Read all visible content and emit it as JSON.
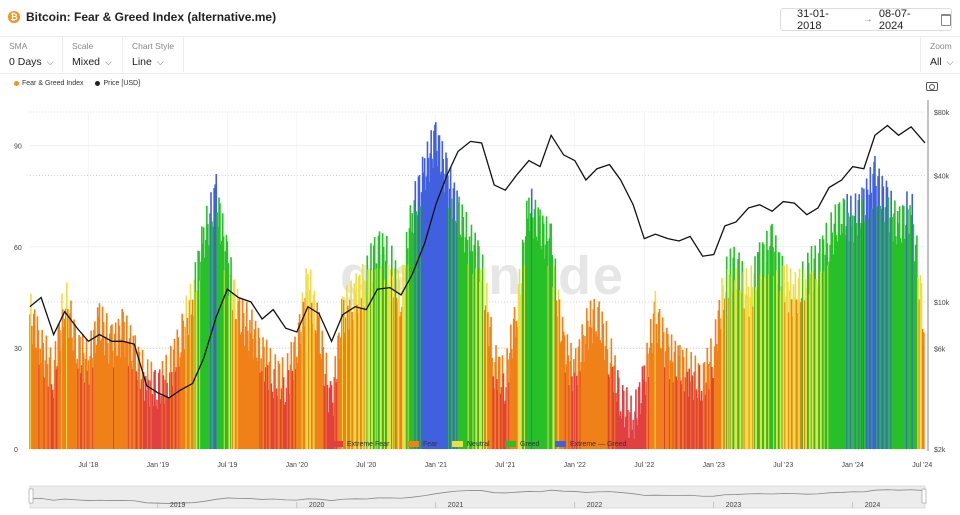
{
  "header": {
    "title": "Bitcoin: Fear & Greed Index (alternative.me)",
    "date_from": "31-01-2018",
    "date_arrow": "→",
    "date_to": "08-07-2024"
  },
  "controls": {
    "sma": {
      "label": "SMA",
      "value": "0 Days"
    },
    "scale": {
      "label": "Scale",
      "value": "Mixed"
    },
    "chart_style": {
      "label": "Chart Style",
      "value": "Line"
    },
    "zoom": {
      "label": "Zoom",
      "value": "All"
    }
  },
  "watermark": "glassnode",
  "colors": {
    "fng_dot": "#f7931a",
    "price_dot": "#222222",
    "extreme_fear": "#e04040",
    "fear": "#f08018",
    "neutral": "#eedd44",
    "greed": "#28c028",
    "extreme_greed": "#4060e0",
    "price_line": "#111111"
  },
  "chart_data": {
    "type": "line",
    "legend_top": [
      "Fear & Greed Index",
      "Price [USD]"
    ],
    "legend_bottom": [
      "Extreme Fear",
      "Fear",
      "Neutral",
      "Greed",
      "Extreme — Greed"
    ],
    "x_ticks": [
      "Jul '18",
      "Jan '19",
      "Jul '19",
      "Jan '20",
      "Jul '20",
      "Jan '21",
      "Jul '21",
      "Jan '22",
      "Jul '22",
      "Jan '23",
      "Jul '23",
      "Jan '24",
      "Jul '24"
    ],
    "y_left": {
      "ticks": [
        0,
        30,
        60,
        90
      ],
      "range": [
        0,
        100
      ]
    },
    "y_right": {
      "ticks": [
        "$2k",
        "$6k",
        "$10k",
        "$40k",
        "$80k"
      ],
      "tick_values": [
        2000,
        6000,
        10000,
        40000,
        80000
      ],
      "scale": "log"
    },
    "x_range": [
      2018.08,
      2024.52
    ],
    "series": [
      {
        "name": "Fear & Greed Index",
        "x": [
          2018.08,
          2018.16,
          2018.25,
          2018.33,
          2018.42,
          2018.5,
          2018.58,
          2018.67,
          2018.75,
          2018.83,
          2018.92,
          2019.0,
          2019.08,
          2019.16,
          2019.25,
          2019.33,
          2019.42,
          2019.5,
          2019.58,
          2019.67,
          2019.75,
          2019.83,
          2019.92,
          2020.0,
          2020.08,
          2020.16,
          2020.25,
          2020.33,
          2020.42,
          2020.5,
          2020.58,
          2020.67,
          2020.75,
          2020.83,
          2020.92,
          2021.0,
          2021.08,
          2021.16,
          2021.25,
          2021.33,
          2021.42,
          2021.5,
          2021.58,
          2021.67,
          2021.75,
          2021.83,
          2021.92,
          2022.0,
          2022.08,
          2022.16,
          2022.25,
          2022.33,
          2022.42,
          2022.5,
          2022.58,
          2022.67,
          2022.75,
          2022.83,
          2022.92,
          2023.0,
          2023.08,
          2023.16,
          2023.25,
          2023.33,
          2023.42,
          2023.5,
          2023.58,
          2023.67,
          2023.75,
          2023.83,
          2023.92,
          2024.0,
          2024.08,
          2024.16,
          2024.25,
          2024.33,
          2024.42,
          2024.52
        ],
        "values": [
          40,
          30,
          22,
          45,
          30,
          25,
          38,
          30,
          35,
          28,
          20,
          18,
          22,
          32,
          45,
          62,
          75,
          55,
          40,
          35,
          28,
          22,
          20,
          30,
          50,
          35,
          12,
          40,
          45,
          50,
          60,
          55,
          45,
          70,
          82,
          92,
          80,
          70,
          60,
          55,
          25,
          20,
          40,
          72,
          65,
          60,
          30,
          22,
          35,
          40,
          28,
          15,
          8,
          20,
          40,
          28,
          25,
          22,
          20,
          28,
          50,
          55,
          45,
          55,
          60,
          50,
          45,
          52,
          55,
          62,
          70,
          68,
          72,
          80,
          72,
          65,
          72,
          35
        ]
      },
      {
        "name": "Price [USD]",
        "x": [
          2018.08,
          2018.16,
          2018.25,
          2018.33,
          2018.42,
          2018.5,
          2018.58,
          2018.67,
          2018.75,
          2018.83,
          2018.92,
          2019.0,
          2019.08,
          2019.16,
          2019.25,
          2019.33,
          2019.42,
          2019.5,
          2019.58,
          2019.67,
          2019.75,
          2019.83,
          2019.92,
          2020.0,
          2020.08,
          2020.16,
          2020.25,
          2020.33,
          2020.42,
          2020.5,
          2020.58,
          2020.67,
          2020.75,
          2020.83,
          2020.92,
          2021.0,
          2021.08,
          2021.16,
          2021.25,
          2021.33,
          2021.42,
          2021.5,
          2021.58,
          2021.67,
          2021.75,
          2021.83,
          2021.92,
          2022.0,
          2022.08,
          2022.16,
          2022.25,
          2022.33,
          2022.42,
          2022.5,
          2022.58,
          2022.67,
          2022.75,
          2022.83,
          2022.92,
          2023.0,
          2023.08,
          2023.16,
          2023.25,
          2023.33,
          2023.42,
          2023.5,
          2023.58,
          2023.67,
          2023.75,
          2023.83,
          2023.92,
          2024.0,
          2024.08,
          2024.16,
          2024.25,
          2024.33,
          2024.42,
          2024.52
        ],
        "values": [
          9500,
          10500,
          7000,
          9000,
          7500,
          6500,
          7000,
          6500,
          6500,
          6300,
          4000,
          3700,
          3500,
          3800,
          4100,
          5400,
          8500,
          11500,
          10500,
          10000,
          8300,
          9200,
          7500,
          7200,
          9500,
          8800,
          6500,
          8700,
          9500,
          9200,
          11500,
          11700,
          10800,
          13500,
          19000,
          29000,
          40000,
          52000,
          58000,
          57000,
          36000,
          34000,
          40000,
          47000,
          44000,
          62000,
          50000,
          47000,
          38000,
          43000,
          45000,
          38000,
          29000,
          20000,
          21000,
          20000,
          19500,
          20500,
          16500,
          16800,
          23000,
          24000,
          28000,
          29000,
          27000,
          30000,
          29500,
          26000,
          28000,
          35000,
          38000,
          44000,
          43000,
          62000,
          69000,
          62000,
          68000,
          57000
        ]
      }
    ],
    "minimap_ticks": [
      "2019",
      "2020",
      "2021",
      "2022",
      "2023",
      "2024"
    ]
  }
}
